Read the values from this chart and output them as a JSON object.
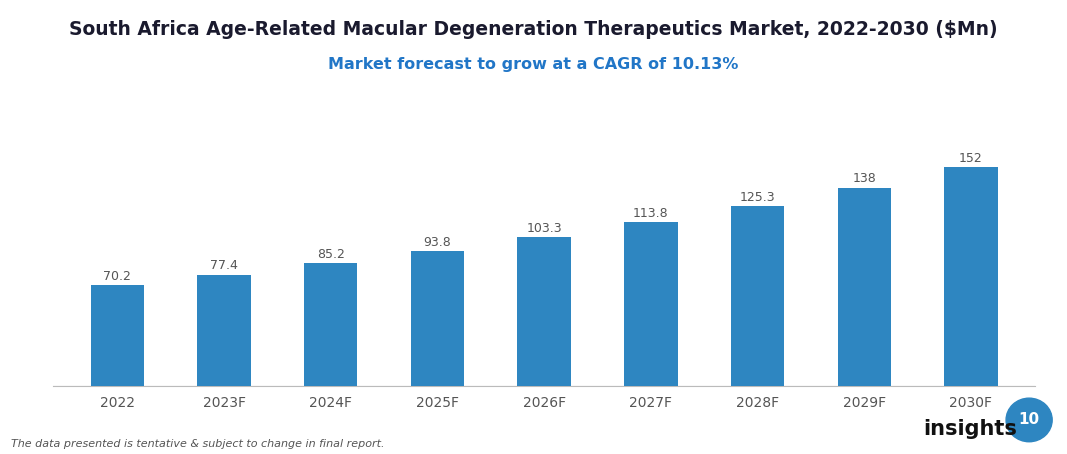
{
  "title": "South Africa Age-Related Macular Degeneration Therapeutics Market, 2022-2030 ($Mn)",
  "subtitle": "Market forecast to grow at a CAGR of 10.13%",
  "categories": [
    "2022",
    "2023F",
    "2024F",
    "2025F",
    "2026F",
    "2027F",
    "2028F",
    "2029F",
    "2030F"
  ],
  "values": [
    70.2,
    77.4,
    85.2,
    93.8,
    103.3,
    113.8,
    125.3,
    138,
    152
  ],
  "bar_color": "#2e86c1",
  "title_color": "#1a1a2e",
  "subtitle_color": "#2176c7",
  "label_color": "#555555",
  "background_color": "#ffffff",
  "footer_text": "The data presented is tentative & subject to change in final report.",
  "footer_color": "#555555",
  "ylim": [
    0,
    180
  ],
  "title_fontsize": 13.5,
  "subtitle_fontsize": 11.5,
  "bar_label_fontsize": 9,
  "tick_fontsize": 10,
  "footer_fontsize": 8,
  "brand_text": "insights",
  "brand_color": "#111111",
  "brand_circle_color": "#2e86c1",
  "brand_number": "10",
  "brand_number_color": "#ffffff"
}
